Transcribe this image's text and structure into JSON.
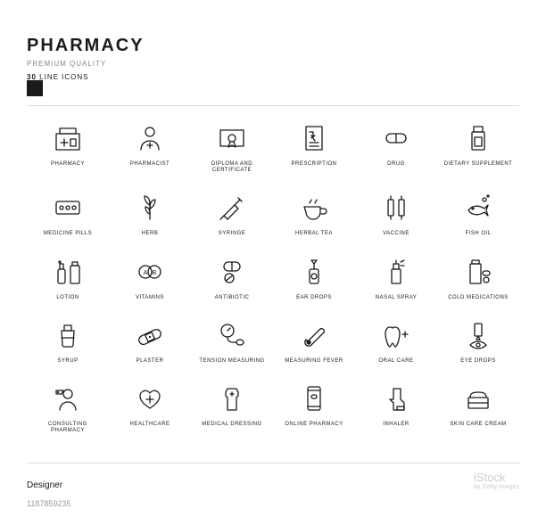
{
  "header": {
    "title": "PHARMACY",
    "subtitle": "PREMIUM QUALITY",
    "count": "30",
    "count_suffix": "LINE ICONS"
  },
  "styling": {
    "background": "#ffffff",
    "text_color": "#1a1a1a",
    "muted_color": "#888",
    "divider_color": "#ddd",
    "stroke_width": 1.3,
    "grid_cols": 6,
    "grid_rows": 5,
    "icon_size": 34,
    "label_fontsize": 6
  },
  "icons": [
    {
      "name": "pharmacy",
      "label": "PHARMACY"
    },
    {
      "name": "pharmacist",
      "label": "PHARMACIST"
    },
    {
      "name": "diploma",
      "label": "DIPLOMA AND CERTIFICATE"
    },
    {
      "name": "prescription",
      "label": "PRESCRIPTION"
    },
    {
      "name": "drug",
      "label": "DRUG"
    },
    {
      "name": "dietary-supplement",
      "label": "DIETARY SUPPLEMENT"
    },
    {
      "name": "medicine-pills",
      "label": "MEDICINE PILLS"
    },
    {
      "name": "herb",
      "label": "HERB"
    },
    {
      "name": "syringe",
      "label": "SYRINGE"
    },
    {
      "name": "herbal-tea",
      "label": "HERBAL TEA"
    },
    {
      "name": "vaccine",
      "label": "VACCINE"
    },
    {
      "name": "fish-oil",
      "label": "FISH OIL"
    },
    {
      "name": "lotion",
      "label": "LOTION"
    },
    {
      "name": "vitamins",
      "label": "VITAMINS"
    },
    {
      "name": "antibiotic",
      "label": "ANTIBIOTIC"
    },
    {
      "name": "ear-drops",
      "label": "EAR DROPS"
    },
    {
      "name": "nasal-spray",
      "label": "NASAL SPRAY"
    },
    {
      "name": "cold-medications",
      "label": "COLD MEDICATIONS"
    },
    {
      "name": "syrup",
      "label": "SYRUP"
    },
    {
      "name": "plaster",
      "label": "PLASTER"
    },
    {
      "name": "tension-measuring",
      "label": "TENSION MEASURING"
    },
    {
      "name": "measuring-fever",
      "label": "MEASURING FEVER"
    },
    {
      "name": "oral-care",
      "label": "ORAL CARE"
    },
    {
      "name": "eye-drops",
      "label": "EYE DROPS"
    },
    {
      "name": "consulting-pharmacy",
      "label": "CONSULTING PHARMACY"
    },
    {
      "name": "healthcare",
      "label": "HEALTHCARE"
    },
    {
      "name": "medical-dressing",
      "label": "MEDICAL DRESSING"
    },
    {
      "name": "online-pharmacy",
      "label": "ONLINE PHARMACY"
    },
    {
      "name": "inhaler",
      "label": "INHALER"
    },
    {
      "name": "skin-care-cream",
      "label": "SKIN CARE CREAM"
    }
  ],
  "footer": {
    "designer": "Designer",
    "stock_id": "1187859235",
    "watermark": "iStock",
    "watermark_by": "by Getty Images"
  }
}
